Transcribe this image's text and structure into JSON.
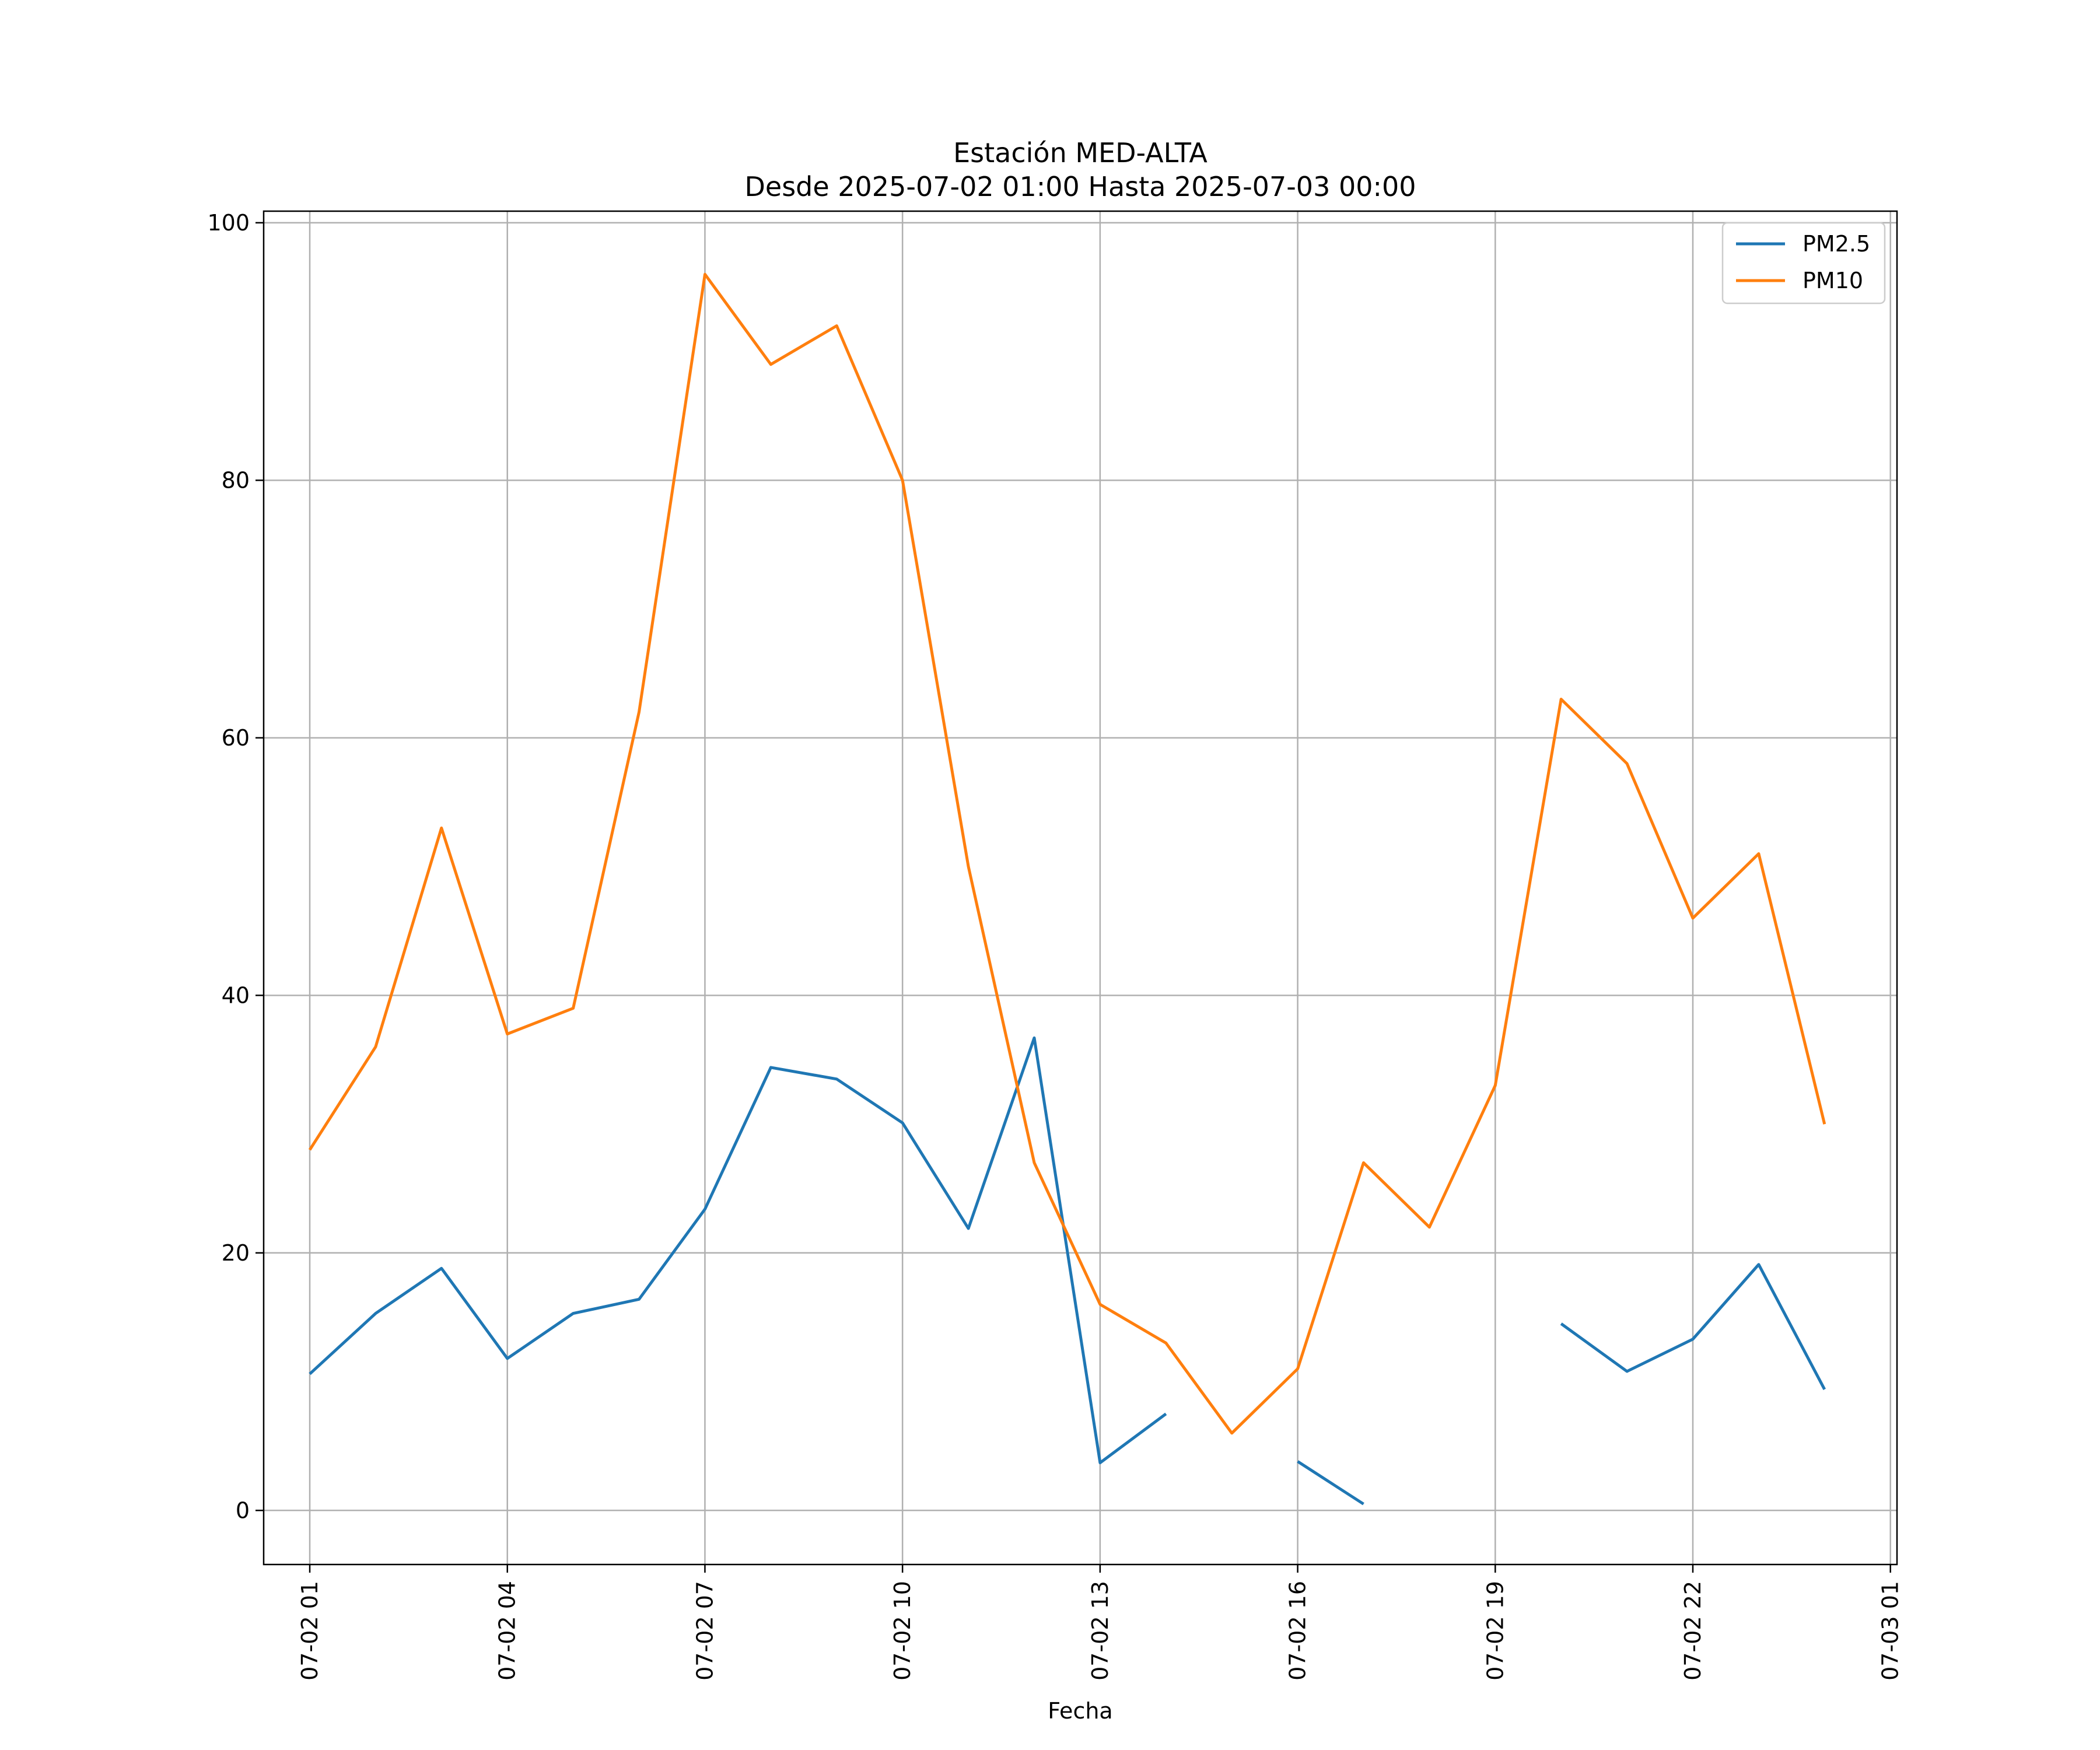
{
  "chart_data": {
    "type": "line",
    "title": "Estación MED-ALTA",
    "subtitle": "Desde 2025-07-02 01:00 Hasta 2025-07-03 00:00",
    "xlabel": "Fecha",
    "ylabel": "",
    "x": [
      "07-02 01",
      "07-02 02",
      "07-02 03",
      "07-02 04",
      "07-02 05",
      "07-02 06",
      "07-02 07",
      "07-02 08",
      "07-02 09",
      "07-02 10",
      "07-02 11",
      "07-02 12",
      "07-02 13",
      "07-02 14",
      "07-02 15",
      "07-02 16",
      "07-02 17",
      "07-02 18",
      "07-02 19",
      "07-02 20",
      "07-02 21",
      "07-02 22",
      "07-02 23",
      "07-03 00"
    ],
    "xticks": [
      "07-02 01",
      "07-02 04",
      "07-02 07",
      "07-02 10",
      "07-02 13",
      "07-02 16",
      "07-02 19",
      "07-02 22",
      "07-03 01"
    ],
    "xlim": [
      "07-02 00:18",
      "07-03 01:06"
    ],
    "ylim": [
      -4.2,
      100.9
    ],
    "yticks": [
      0,
      20,
      40,
      60,
      80,
      100
    ],
    "grid": true,
    "legend_position": "top-right",
    "series": [
      {
        "name": "PM2.5",
        "color": "#1f77b4",
        "values": [
          10.6,
          15.3,
          18.8,
          11.8,
          15.3,
          16.4,
          23.4,
          34.4,
          33.5,
          30.1,
          21.9,
          36.7,
          3.7,
          7.5,
          null,
          3.8,
          0.5,
          null,
          null,
          14.5,
          10.8,
          13.3,
          19.1,
          9.4
        ]
      },
      {
        "name": "PM10",
        "color": "#ff7f0e",
        "values": [
          28,
          36,
          53,
          37,
          39,
          62,
          96,
          89,
          92,
          80,
          50,
          27,
          16,
          13,
          6,
          11,
          27,
          22,
          33,
          63,
          58,
          46,
          51,
          30
        ]
      }
    ]
  }
}
